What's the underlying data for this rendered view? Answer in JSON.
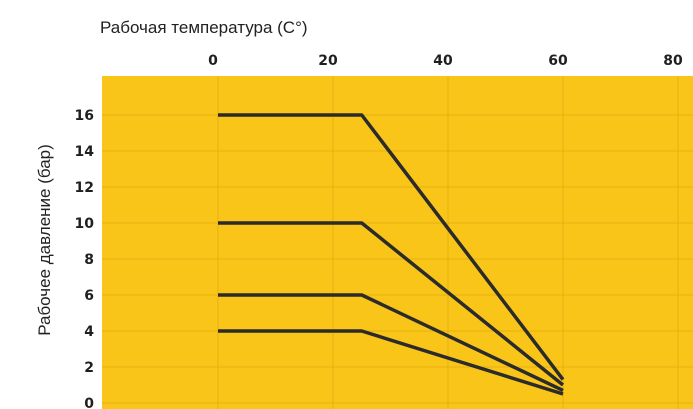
{
  "chart_data": {
    "type": "line",
    "xlabel": "Рабочая температура (С°)",
    "ylabel": "Рабочее давление (бар)",
    "x_ticks": [
      "0",
      "20",
      "40",
      "60",
      "80"
    ],
    "y_ticks": [
      "0",
      "2",
      "4",
      "6",
      "8",
      "10",
      "12",
      "14",
      "16"
    ],
    "xlim": [
      -20,
      80
    ],
    "ylim": [
      0,
      18
    ],
    "grid": true,
    "x_axis_position": "top",
    "colors": {
      "plot_background": "#F9C519",
      "grid": "#E7B10F",
      "line": "#2b2b2b"
    },
    "series": [
      {
        "x": [
          0,
          25,
          60
        ],
        "y": [
          16,
          16,
          1.3
        ]
      },
      {
        "x": [
          0,
          25,
          60
        ],
        "y": [
          10,
          10,
          1.0
        ]
      },
      {
        "x": [
          0,
          25,
          60
        ],
        "y": [
          6,
          6,
          0.7
        ]
      },
      {
        "x": [
          0,
          25,
          60
        ],
        "y": [
          4,
          4,
          0.5
        ]
      }
    ]
  }
}
